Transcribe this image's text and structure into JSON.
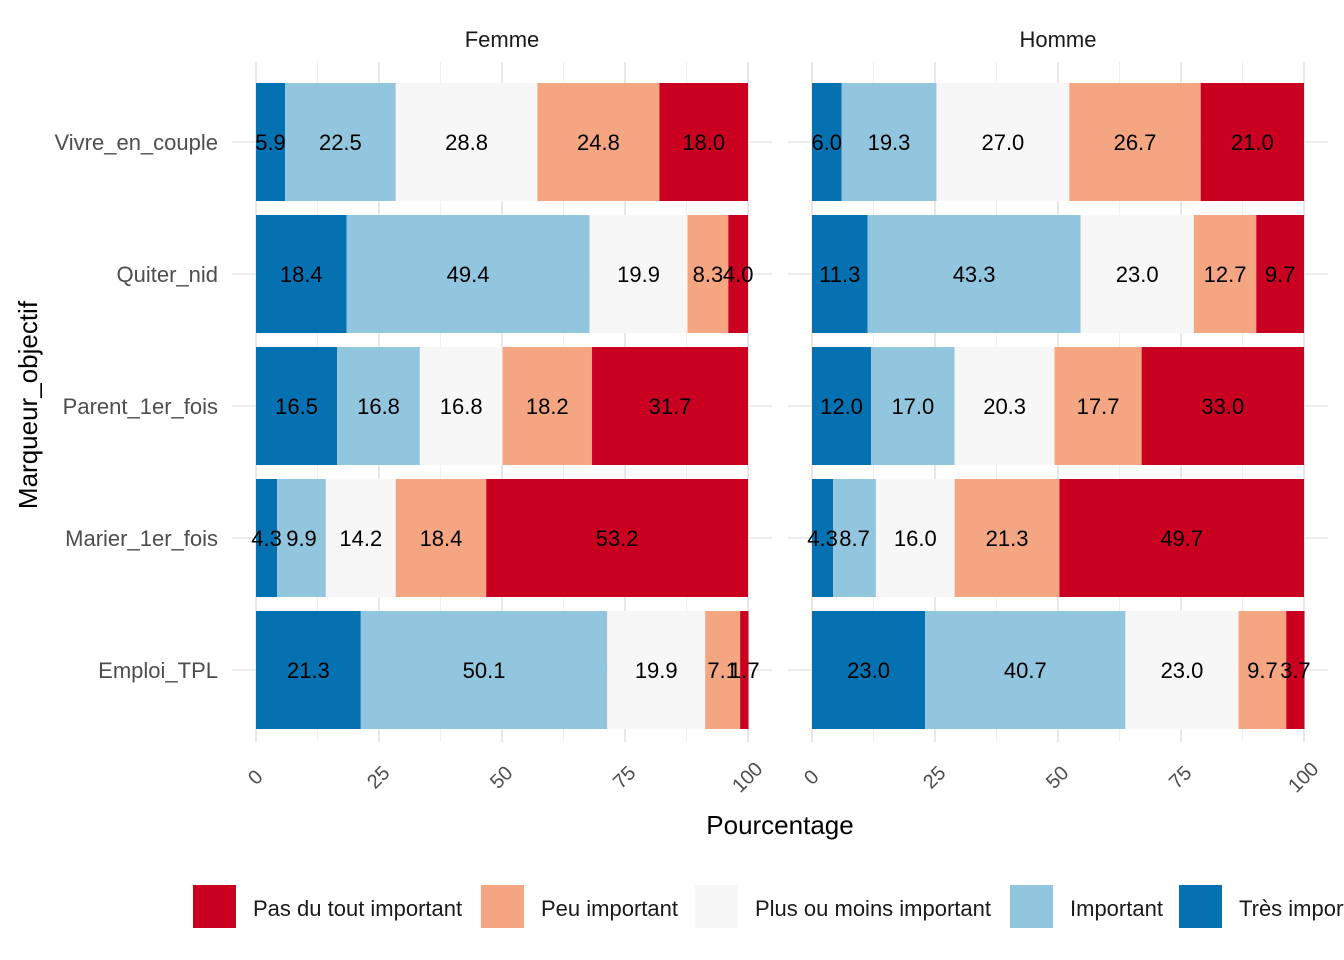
{
  "chart_data": {
    "type": "bar",
    "orientation": "horizontal",
    "stacked": true,
    "xlabel": "Pourcentage",
    "ylabel": "Marqueur_objectif",
    "xlim": [
      0,
      100
    ],
    "xticks": [
      "0",
      "25",
      "50",
      "75",
      "100"
    ],
    "grid": true,
    "legend_position": "bottom",
    "categories": [
      "Vivre_en_couple",
      "Quiter_nid",
      "Parent_1er_fois",
      "Marier_1er_fois",
      "Emploi_TPL"
    ],
    "legend": [
      {
        "name": "Pas du tout important",
        "color": "#ca0020"
      },
      {
        "name": "Peu important",
        "color": "#f4a582"
      },
      {
        "name": "Plus ou moins important",
        "color": "#f7f7f7"
      },
      {
        "name": "Important",
        "color": "#92c5de"
      },
      {
        "name": "Très important",
        "color": "#0571b0"
      }
    ],
    "stack_order": [
      "Très important",
      "Important",
      "Plus ou moins important",
      "Peu important",
      "Pas du tout important"
    ],
    "panels": [
      {
        "title": "Femme",
        "series": [
          {
            "name": "Très important",
            "values": [
              5.9,
              18.4,
              16.5,
              4.3,
              21.3
            ]
          },
          {
            "name": "Important",
            "values": [
              22.5,
              49.4,
              16.8,
              9.9,
              50.1
            ]
          },
          {
            "name": "Plus ou moins important",
            "values": [
              28.8,
              19.9,
              16.8,
              14.2,
              19.9
            ]
          },
          {
            "name": "Peu important",
            "values": [
              24.8,
              8.3,
              18.2,
              18.4,
              7.1
            ]
          },
          {
            "name": "Pas du tout important",
            "values": [
              18.0,
              4.0,
              31.7,
              53.2,
              1.7
            ]
          }
        ]
      },
      {
        "title": "Homme",
        "series": [
          {
            "name": "Très important",
            "values": [
              6.0,
              11.3,
              12.0,
              4.3,
              23.0
            ]
          },
          {
            "name": "Important",
            "values": [
              19.3,
              43.3,
              17.0,
              8.7,
              40.7
            ]
          },
          {
            "name": "Plus ou moins important",
            "values": [
              27.0,
              23.0,
              20.3,
              16.0,
              23.0
            ]
          },
          {
            "name": "Peu important",
            "values": [
              26.7,
              12.7,
              17.7,
              21.3,
              9.7
            ]
          },
          {
            "name": "Pas du tout important",
            "values": [
              21.0,
              9.7,
              33.0,
              49.7,
              3.7
            ]
          }
        ]
      }
    ]
  }
}
